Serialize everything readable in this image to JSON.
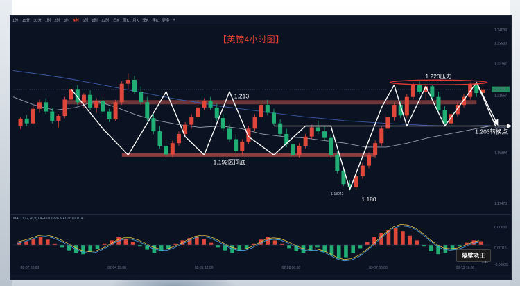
{
  "toolbar": {
    "timeframes": [
      {
        "label": "1分",
        "active": false
      },
      {
        "label": "15分",
        "active": false
      },
      {
        "label": "30分",
        "active": false
      },
      {
        "label": "1时",
        "active": false
      },
      {
        "label": "2时",
        "active": false
      },
      {
        "label": "3时",
        "active": false
      },
      {
        "label": "4时",
        "active": true
      },
      {
        "label": "6时",
        "active": false
      },
      {
        "label": "8时",
        "active": false
      },
      {
        "label": "12时",
        "active": false
      },
      {
        "label": "日K",
        "active": false
      },
      {
        "label": "周K",
        "active": false
      },
      {
        "label": "月K",
        "active": false
      },
      {
        "label": "季K",
        "active": false
      },
      {
        "label": "年K",
        "active": false
      },
      {
        "label": "更多",
        "active": false
      }
    ],
    "settings_icon": "gear-icon"
  },
  "chart_data": {
    "type": "candlestick",
    "title": "【英镑4小时图】",
    "ylim": [
      1.171,
      1.242
    ],
    "price_ticks": [
      "1.24038",
      "1.23523",
      "1.22767",
      "1.21557",
      "1.20385",
      "1.19399",
      "1.17470"
    ],
    "current_price": "1.21791",
    "date_ticks": [
      "02-07 20:00",
      "02-14 15:00",
      "02-21 12:00",
      "02-28 08:00",
      "03-07 00:00",
      "03-13 16:00"
    ],
    "candles": [
      [
        1.204,
        1.2075,
        1.2028,
        1.2068
      ],
      [
        1.2068,
        1.2082,
        1.204,
        1.205
      ],
      [
        1.205,
        1.2115,
        1.2045,
        1.2105
      ],
      [
        1.2105,
        1.214,
        1.209,
        1.213
      ],
      [
        1.213,
        1.2145,
        1.2085,
        1.2095
      ],
      [
        1.2095,
        1.211,
        1.205,
        1.206
      ],
      [
        1.206,
        1.2085,
        1.2035,
        1.2078
      ],
      [
        1.2078,
        1.215,
        1.207,
        1.214
      ],
      [
        1.214,
        1.219,
        1.2125,
        1.218
      ],
      [
        1.218,
        1.2195,
        1.212,
        1.213
      ],
      [
        1.213,
        1.2165,
        1.211,
        1.2158
      ],
      [
        1.2158,
        1.2175,
        1.21,
        1.211
      ],
      [
        1.211,
        1.2145,
        1.209,
        1.2135
      ],
      [
        1.2135,
        1.215,
        1.2085,
        1.2095
      ],
      [
        1.2095,
        1.2105,
        1.2055,
        1.2065
      ],
      [
        1.2065,
        1.214,
        1.206,
        1.213
      ],
      [
        1.213,
        1.221,
        1.212,
        1.22
      ],
      [
        1.22,
        1.224,
        1.218,
        1.2215
      ],
      [
        1.2215,
        1.223,
        1.216,
        1.217
      ],
      [
        1.217,
        1.219,
        1.212,
        1.213
      ],
      [
        1.213,
        1.215,
        1.206,
        1.207
      ],
      [
        1.207,
        1.2085,
        1.201,
        1.202
      ],
      [
        1.202,
        1.204,
        1.1955,
        1.1965
      ],
      [
        1.1965,
        1.199,
        1.192,
        1.1932
      ],
      [
        1.1932,
        1.1985,
        1.1922,
        1.1975
      ],
      [
        1.1975,
        1.202,
        1.1965,
        1.201
      ],
      [
        1.201,
        1.2055,
        1.2,
        1.2045
      ],
      [
        1.2045,
        1.2085,
        1.203,
        1.2075
      ],
      [
        1.2075,
        1.212,
        1.2065,
        1.211
      ],
      [
        1.211,
        1.2145,
        1.21,
        1.2135
      ],
      [
        1.2135,
        1.215,
        1.21,
        1.211
      ],
      [
        1.211,
        1.2125,
        1.206,
        1.207
      ],
      [
        1.207,
        1.2085,
        1.202,
        1.203
      ],
      [
        1.203,
        1.2045,
        1.198,
        1.199
      ],
      [
        1.199,
        1.201,
        1.1935,
        1.1945
      ],
      [
        1.1945,
        1.199,
        1.193,
        1.198
      ],
      [
        1.198,
        1.204,
        1.197,
        1.203
      ],
      [
        1.203,
        1.2085,
        1.202,
        1.2075
      ],
      [
        1.2075,
        1.213,
        1.2065,
        1.212
      ],
      [
        1.212,
        1.214,
        1.208,
        1.209
      ],
      [
        1.209,
        1.2105,
        1.204,
        1.205
      ],
      [
        1.205,
        1.2065,
        1.2,
        1.201
      ],
      [
        1.201,
        1.203,
        1.196,
        1.197
      ],
      [
        1.197,
        1.1985,
        1.1918,
        1.193
      ],
      [
        1.193,
        1.1975,
        1.192,
        1.1965
      ],
      [
        1.1965,
        1.201,
        1.1955,
        1.2
      ],
      [
        1.2,
        1.2045,
        1.199,
        1.2035
      ],
      [
        1.2035,
        1.206,
        1.201,
        1.202
      ],
      [
        1.202,
        1.204,
        1.1985,
        1.1995
      ],
      [
        1.1995,
        1.201,
        1.192,
        1.193
      ],
      [
        1.193,
        1.1945,
        1.186,
        1.187
      ],
      [
        1.187,
        1.1885,
        1.1812,
        1.182
      ],
      [
        1.182,
        1.1835,
        1.1795,
        1.1808
      ],
      [
        1.1808,
        1.186,
        1.18,
        1.185
      ],
      [
        1.185,
        1.19,
        1.184,
        1.189
      ],
      [
        1.189,
        1.194,
        1.188,
        1.193
      ],
      [
        1.193,
        1.1985,
        1.192,
        1.1975
      ],
      [
        1.1975,
        1.204,
        1.1965,
        1.203
      ],
      [
        1.203,
        1.2085,
        1.202,
        1.2075
      ],
      [
        1.2075,
        1.213,
        1.206,
        1.212
      ],
      [
        1.212,
        1.2135,
        1.207,
        1.208
      ],
      [
        1.208,
        1.216,
        1.207,
        1.215
      ],
      [
        1.215,
        1.2205,
        1.214,
        1.2195
      ],
      [
        1.2195,
        1.221,
        1.216,
        1.217
      ],
      [
        1.217,
        1.22,
        1.214,
        1.219
      ],
      [
        1.219,
        1.2198,
        1.214,
        1.215
      ],
      [
        1.215,
        1.217,
        1.209,
        1.21
      ],
      [
        1.21,
        1.2115,
        1.204,
        1.205
      ],
      [
        1.205,
        1.2095,
        1.204,
        1.2085
      ],
      [
        1.2085,
        1.213,
        1.2075,
        1.212
      ],
      [
        1.212,
        1.216,
        1.211,
        1.215
      ],
      [
        1.215,
        1.2205,
        1.214,
        1.2195
      ],
      [
        1.2195,
        1.22,
        1.215,
        1.2165
      ],
      [
        1.2165,
        1.2185,
        1.215,
        1.2179
      ]
    ],
    "ma_slow": [
      1.225,
      1.224,
      1.2228,
      1.2215,
      1.22,
      1.2185,
      1.217,
      1.2155,
      1.214,
      1.2128,
      1.2115,
      1.2105,
      1.2095,
      1.2085,
      1.2075,
      1.2068,
      1.206,
      1.2055,
      1.205,
      1.2046,
      1.2042,
      1.204,
      1.204,
      1.2042
    ],
    "ma_fast": [
      1.215,
      1.212,
      1.21,
      1.211,
      1.2135,
      1.211,
      1.208,
      1.206,
      1.2045,
      1.2035,
      1.204,
      1.203,
      1.201,
      1.2,
      1.1995,
      1.1985,
      1.1975,
      1.196,
      1.196,
      1.1975,
      1.1995,
      1.201,
      1.2025,
      1.204
    ],
    "resistance_zone": {
      "price": 1.213,
      "label": "1.213"
    },
    "bottom_zone": {
      "price": 1.193,
      "label": "1.192区间底"
    },
    "pivot_line": {
      "price": 1.204,
      "label": "1.203转换点"
    },
    "pressure": {
      "price": 1.2205,
      "label": "1.220压力"
    },
    "low_point": {
      "price": 1.18,
      "label": "1.180",
      "small_label": "1.18042"
    },
    "zigzag": [
      [
        8,
        1.218
      ],
      [
        13,
        1.203
      ],
      [
        17,
        1.193
      ],
      [
        23,
        1.217
      ],
      [
        26,
        1.2
      ],
      [
        29,
        1.193
      ],
      [
        33,
        1.217
      ],
      [
        36,
        1.2
      ],
      [
        40,
        1.193
      ],
      [
        45,
        1.204
      ],
      [
        49,
        1.204
      ],
      [
        52,
        1.18
      ],
      [
        57,
        1.211
      ],
      [
        59,
        1.2195
      ],
      [
        61,
        1.204
      ],
      [
        64,
        1.219
      ],
      [
        67,
        1.204
      ],
      [
        72,
        1.2205
      ],
      [
        75,
        1.204
      ]
    ],
    "macd": {
      "legend": "MACD(12,26,9)  DEA:0.00226  MACD:0.00104",
      "ticks": [
        "0.00606",
        "0.00115",
        "-0.00835"
      ],
      "hist": [
        0.3,
        0.5,
        0.8,
        1.0,
        0.7,
        0.2,
        -0.3,
        -0.7,
        -1.0,
        -1.2,
        -0.9,
        -0.5,
        0.2,
        0.6,
        1.0,
        0.8,
        0.4,
        -0.2,
        -0.6,
        -1.0,
        -0.8,
        -0.5,
        0.2,
        0.6,
        0.9,
        1.1,
        0.8,
        0.3,
        -0.3,
        -0.7,
        -1.0,
        -0.8,
        -0.5,
        0.2,
        0.7,
        1.0,
        0.6,
        0.2,
        -0.4,
        -0.8,
        -1.0,
        -0.7,
        -0.3,
        -0.9,
        -1.4,
        -1.8,
        -1.6,
        -1.0,
        -0.4,
        0.4,
        1.0,
        1.6,
        2.0,
        2.2,
        1.8,
        1.2,
        0.6,
        -0.2,
        -0.8,
        -1.2,
        -1.0,
        -0.6,
        -0.2,
        0.3,
        0.6,
        0.5
      ]
    }
  },
  "watermark": {
    "label": "隔壁老王",
    "sub": "4.81"
  }
}
